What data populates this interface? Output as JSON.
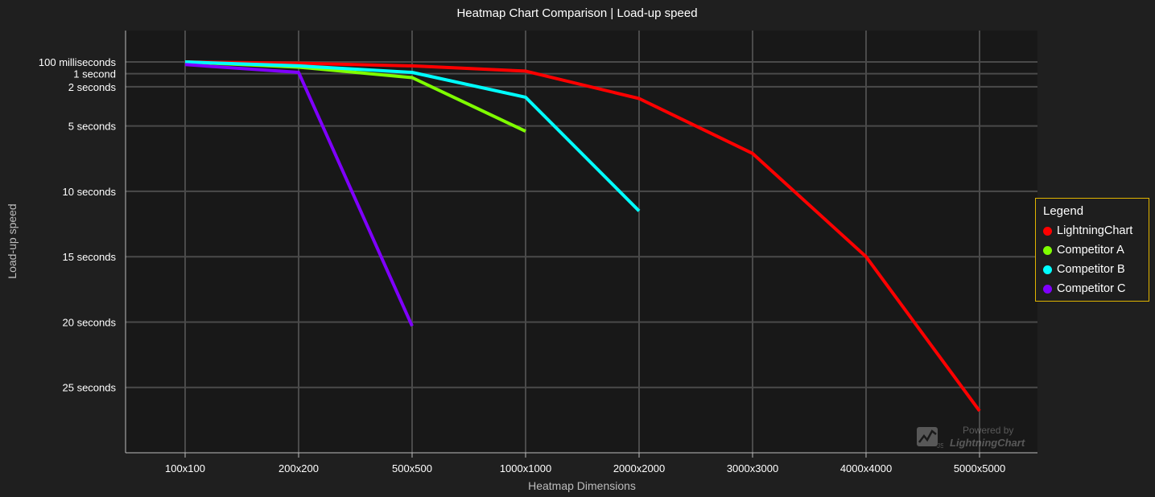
{
  "chart_data": {
    "type": "line",
    "title": "Heatmap Chart Comparison | Load-up speed",
    "xlabel": "Heatmap Dimensions",
    "ylabel": "Load-up speed",
    "categories": [
      "100x100",
      "200x200",
      "500x500",
      "1000x1000",
      "2000x2000",
      "3000x3000",
      "4000x4000",
      "5000x5000"
    ],
    "ylim": [
      -2.3,
      30
    ],
    "y_inverted": true,
    "y_ticks": [
      {
        "value": 0.1,
        "label": "100 milliseconds"
      },
      {
        "value": 1,
        "label": "1 second"
      },
      {
        "value": 2,
        "label": "2 seconds"
      },
      {
        "value": 5,
        "label": "5 seconds"
      },
      {
        "value": 10,
        "label": "10 seconds"
      },
      {
        "value": 15,
        "label": "15 seconds"
      },
      {
        "value": 20,
        "label": "20 seconds"
      },
      {
        "value": 25,
        "label": "25 seconds"
      }
    ],
    "grid": true,
    "legend_position": "right",
    "series": [
      {
        "name": "LightningChart",
        "color": "#ff0000",
        "values": [
          0.1,
          0.2,
          0.4,
          0.8,
          2.9,
          7.1,
          15.0,
          26.8
        ]
      },
      {
        "name": "Competitor A",
        "color": "#7fff00",
        "values": [
          0.1,
          0.5,
          1.3,
          5.4,
          null,
          null,
          null,
          null
        ]
      },
      {
        "name": "Competitor B",
        "color": "#00ffff",
        "values": [
          0.1,
          0.4,
          0.9,
          2.8,
          11.5,
          null,
          null,
          null
        ]
      },
      {
        "name": "Competitor C",
        "color": "#7f00ff",
        "values": [
          0.3,
          0.9,
          20.3,
          null,
          null,
          null,
          null,
          null
        ]
      }
    ]
  },
  "legend": {
    "title": "Legend"
  },
  "watermark": {
    "powered": "Powered by",
    "brand": "LightningChart",
    "mark": "JS"
  }
}
